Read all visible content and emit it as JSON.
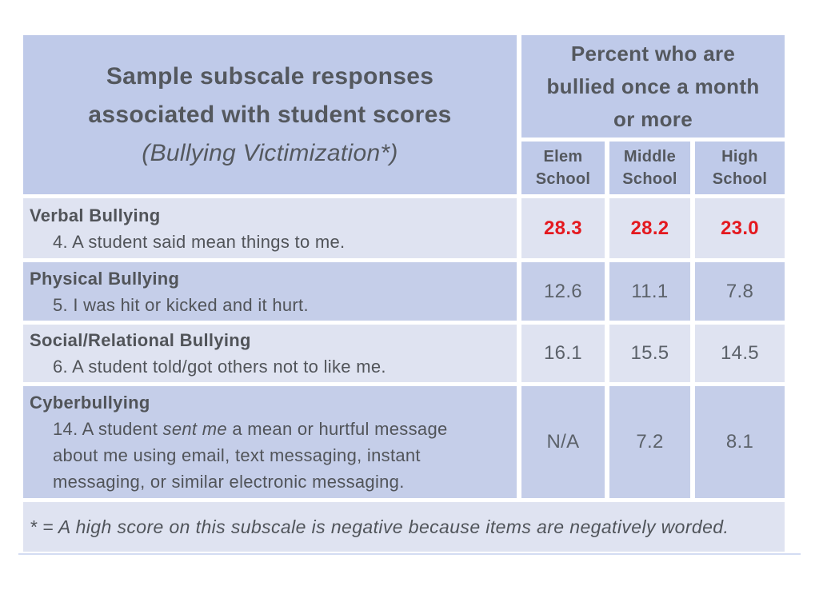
{
  "colors": {
    "header_bg": "#bfcae9",
    "band_dark": "#c5cee9",
    "band_light": "#dfe3f1",
    "heading_text": "#54585e",
    "body_text": "#515459",
    "value_text": "#5c626a",
    "highlight_red": "#e4191f"
  },
  "header": {
    "title_line1": "Sample subscale responses",
    "title_line2": "associated with student scores",
    "title_line3": "(Bullying Victimization*)",
    "percent_line1": "Percent who are",
    "percent_line2": "bullied once a month",
    "percent_line3": "or more",
    "columns": [
      {
        "line1": "Elem",
        "line2": "School"
      },
      {
        "line1": "Middle",
        "line2": "School"
      },
      {
        "line1": "High",
        "line2": "School"
      }
    ]
  },
  "rows": [
    {
      "category": "Verbal Bullying",
      "item": "4. A student said mean things to me.",
      "values": [
        "28.3",
        "28.2",
        "23.0"
      ]
    },
    {
      "category": "Physical Bullying",
      "item": "5. I was hit or kicked and it hurt.",
      "values": [
        "12.6",
        "11.1",
        "7.8"
      ]
    },
    {
      "category": "Social/Relational Bullying",
      "item": "6. A student told/got others not to like me.",
      "values": [
        "16.1",
        "15.5",
        "14.5"
      ]
    },
    {
      "category": "Cyberbullying",
      "item_prefix": "14. A student ",
      "item_italic": "sent me",
      "item_suffix": " a mean or hurtful message",
      "item_line2": "about me using email, text messaging, instant",
      "item_line3": "messaging, or similar electronic messaging.",
      "values": [
        "N/A",
        "7.2",
        "8.1"
      ]
    }
  ],
  "footnote": "* = A high score on this subscale is negative because items are negatively worded."
}
